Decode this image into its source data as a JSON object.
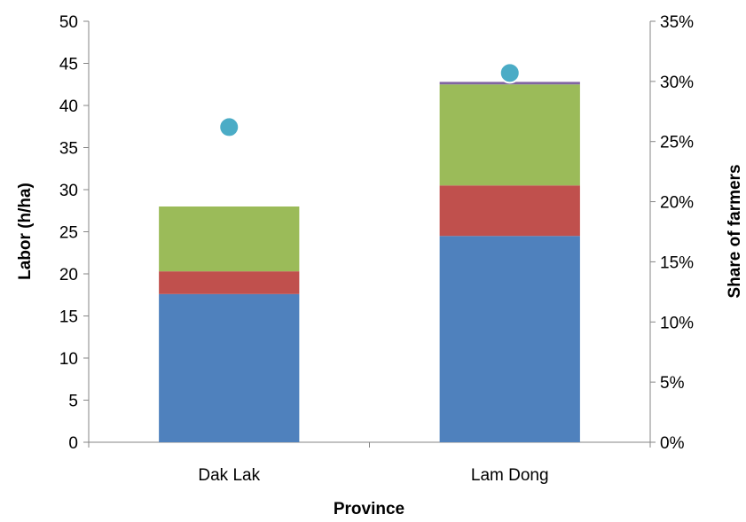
{
  "chart_data": {
    "type": "bar",
    "stacked": true,
    "title": "",
    "xlabel": "Province",
    "ylabel": "Labor (h/ha)",
    "y2label": "Share of farmers",
    "categories": [
      "Dak Lak",
      "Lam Dong"
    ],
    "ylim": [
      0,
      50
    ],
    "yticks": [
      0,
      5,
      10,
      15,
      20,
      25,
      30,
      35,
      40,
      45,
      50
    ],
    "y2lim": [
      0,
      0.35
    ],
    "y2ticks": [
      "0%",
      "5%",
      "10%",
      "15%",
      "20%",
      "25%",
      "30%",
      "35%"
    ],
    "grid": false,
    "legend": "none",
    "series": [
      {
        "values": [
          17.6,
          24.5
        ],
        "color": "#4f81bd",
        "axis": "left"
      },
      {
        "values": [
          2.7,
          6.0
        ],
        "color": "#c0504d",
        "axis": "left"
      },
      {
        "values": [
          7.7,
          12.0
        ],
        "color": "#9bbb59",
        "axis": "left"
      },
      {
        "values": [
          0.0,
          0.3
        ],
        "color": "#8064a2",
        "axis": "left"
      }
    ],
    "points": {
      "type": "scatter",
      "axis": "right",
      "values": [
        0.262,
        0.307
      ],
      "color": "#4bacc6"
    }
  }
}
